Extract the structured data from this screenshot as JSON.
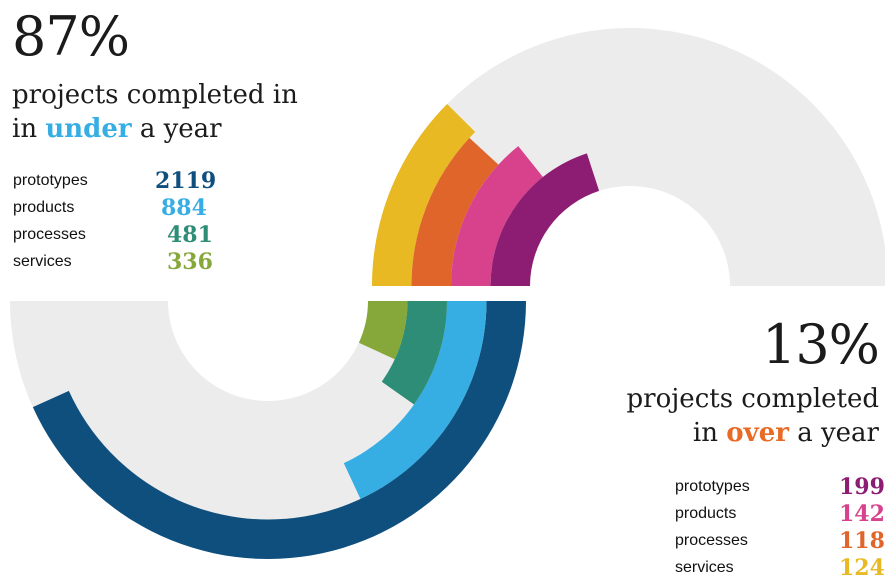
{
  "colors": {
    "background_ring": "#ececec",
    "under_keyword": "#36aee3",
    "over_keyword": "#e86a25"
  },
  "under": {
    "percent": "87%",
    "line1": "projects completed in",
    "line2_pre": "in",
    "line2_kw": "under",
    "line2_post": "a year"
  },
  "over": {
    "percent": "13%",
    "line1": "projects completed",
    "line2_pre": "in",
    "line2_kw": "over",
    "line2_post": "a year"
  },
  "chart_data": [
    {
      "type": "radial-bar",
      "group": "under a year",
      "categories": [
        "prototypes",
        "products",
        "processes",
        "services"
      ],
      "values": [
        2119,
        884,
        481,
        336
      ],
      "labels": [
        "2119",
        "884",
        "481",
        "336"
      ],
      "colors": [
        "#0e4f7d",
        "#36aee3",
        "#2e8d76",
        "#86a83a"
      ]
    },
    {
      "type": "radial-bar",
      "group": "over a year",
      "categories": [
        "prototypes",
        "products",
        "processes",
        "services"
      ],
      "values": [
        199,
        142,
        118,
        124
      ],
      "labels": [
        "199",
        "142",
        "118",
        "124"
      ],
      "colors": [
        "#8c1d72",
        "#d8428c",
        "#e0652a",
        "#e8b923"
      ]
    }
  ]
}
